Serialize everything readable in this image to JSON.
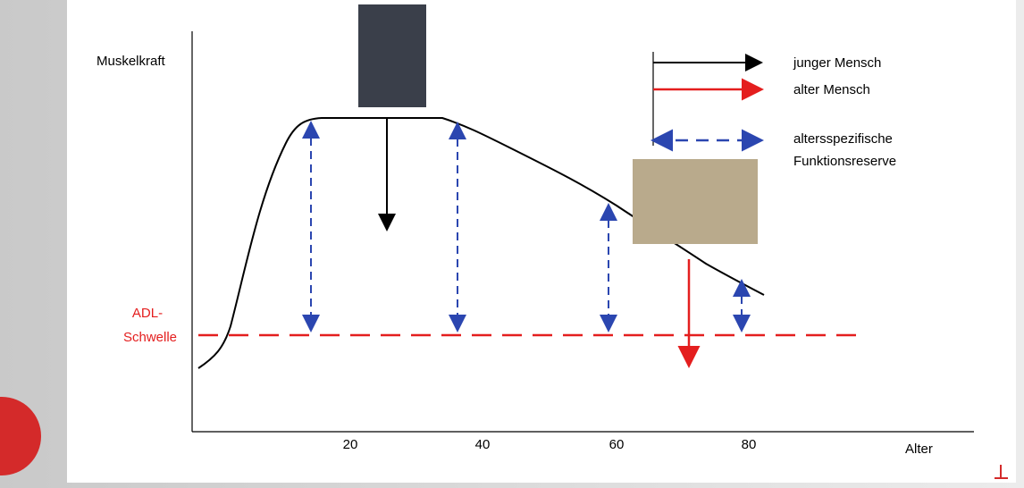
{
  "y_axis_label": "Muskelkraft",
  "x_axis_label": "Alter",
  "x_ticks": [
    "20",
    "40",
    "60",
    "80"
  ],
  "threshold_label": [
    "ADL-",
    "Schwelle"
  ],
  "legend": [
    "junger Mensch",
    "alter Mensch",
    "altersspezifische",
    "Funktionsreserve"
  ]
}
